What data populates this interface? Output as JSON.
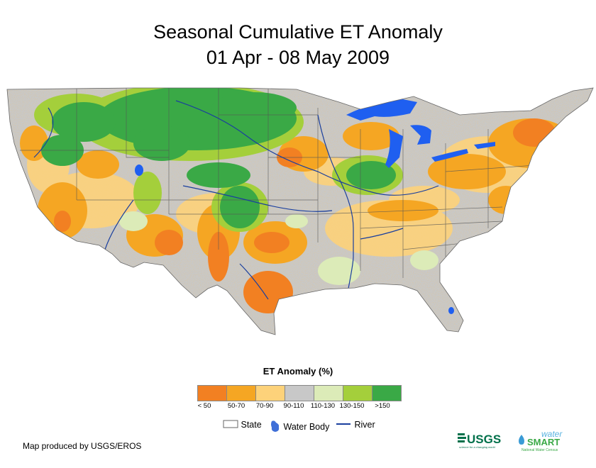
{
  "header": {
    "title": "Seasonal Cumulative ET Anomaly",
    "subtitle": "01 Apr - 08 May 2009"
  },
  "map": {
    "region": "Conterminous United States",
    "colors": {
      "water": "#1f5ff0",
      "river": "#1a3f9e",
      "state_border": "#555555"
    }
  },
  "legend": {
    "title": "ET Anomaly (%)",
    "classes": [
      {
        "label": "< 50",
        "color": "#f28022"
      },
      {
        "label": "50-70",
        "color": "#f5a623"
      },
      {
        "label": "70-90",
        "color": "#fdd27a"
      },
      {
        "label": "90-110",
        "color": "#c8c8c8"
      },
      {
        "label": "110-130",
        "color": "#dcebb8"
      },
      {
        "label": "130-150",
        "color": "#a4cf3b"
      },
      {
        "label": ">150",
        "color": "#3aa946"
      }
    ],
    "keys": {
      "state": "State",
      "water": "Water Body",
      "river": "River"
    }
  },
  "footer": {
    "credit": "Map produced by USGS/EROS",
    "logo_usgs": "USGS",
    "logo_usgs_tagline": "science for a changing world",
    "logo_water": "water",
    "logo_smart": "SMART",
    "logo_census": "National Water Census"
  }
}
